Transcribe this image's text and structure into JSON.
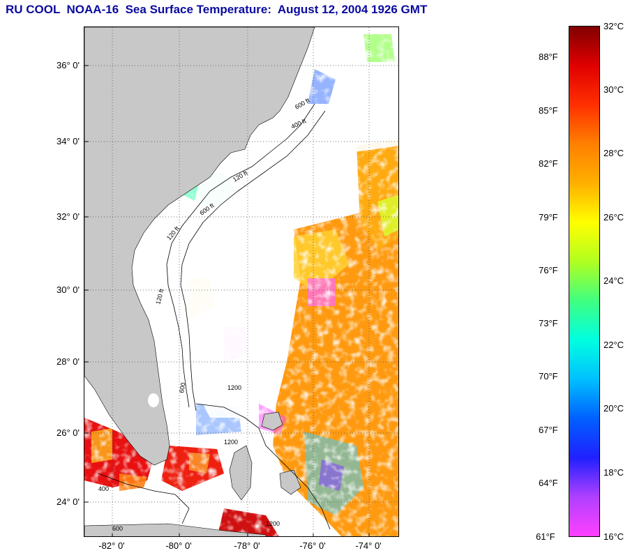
{
  "title": "RU COOL  NOAA-16  Sea Surface Temperature:  August 12, 2004 1926 GMT",
  "map": {
    "lat_labels": [
      "36° 0'",
      "34° 0'",
      "32° 0'",
      "30° 0'",
      "28° 0'",
      "26° 0'",
      "24° 0'"
    ],
    "lon_labels": [
      "-82° 0'",
      "-80° 0'",
      "-78° 0'",
      "-76° 0'",
      "-74° 0'"
    ],
    "contour_labels": [
      "400 ft",
      "120 ft",
      "600 ft",
      "120 ft",
      "600 ft",
      "120 ft",
      "600",
      "1200",
      "1200",
      "1200",
      "600",
      "400"
    ],
    "colors": {
      "land": "#c8c8c8",
      "cloud": "#ffffff",
      "grid": "#444444",
      "contour": "#000000"
    }
  },
  "colorbar": {
    "fahrenheit_labels": [
      "88°F",
      "85°F",
      "82°F",
      "79°F",
      "76°F",
      "73°F",
      "70°F",
      "67°F",
      "64°F",
      "61°F"
    ],
    "celsius_labels": [
      "32°C",
      "30°C",
      "28°C",
      "26°C",
      "24°C",
      "22°C",
      "20°C",
      "18°C",
      "16°C"
    ],
    "range_celsius": [
      16,
      32
    ],
    "gradient_colors": [
      "#ff40ff",
      "#b040ff",
      "#2020ff",
      "#0060ff",
      "#00c0ff",
      "#00ffe0",
      "#40ff80",
      "#b0ff20",
      "#ffff00",
      "#ffb000",
      "#ff8000",
      "#ff3000",
      "#e00000",
      "#800000"
    ]
  }
}
